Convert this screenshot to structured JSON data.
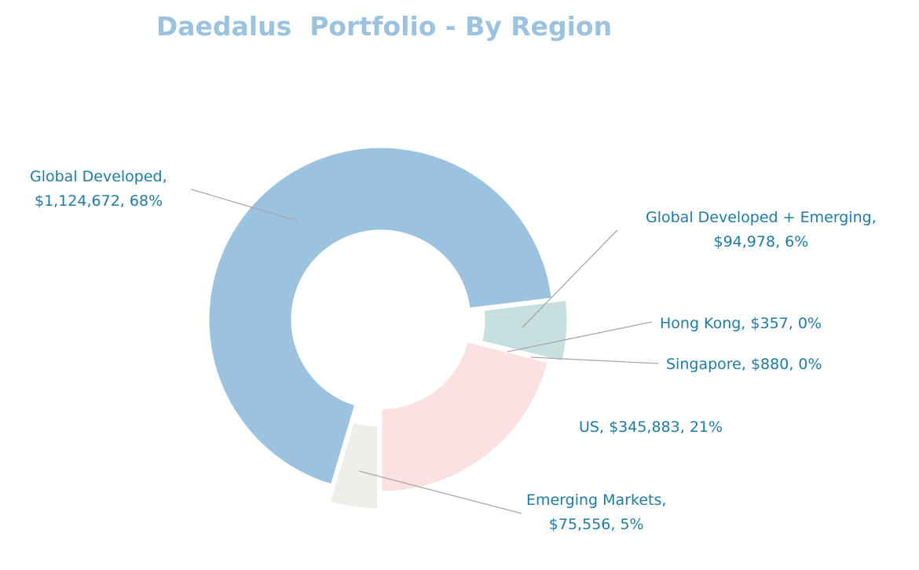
{
  "chart_data": {
    "type": "pie",
    "donut": true,
    "title": "Daedalus  Portfolio - By Region",
    "slices": [
      {
        "name": "Emerging Markets",
        "value": 75556,
        "value_label": "$75,556",
        "percent_label": "5%",
        "color": "#efeeea"
      },
      {
        "name": "Global Developed",
        "value": 1124672,
        "value_label": "$1,124,672",
        "percent_label": "68%",
        "color": "#9bc2df"
      },
      {
        "name": "Global Developed + Emerging",
        "value": 94978,
        "value_label": "$94,978",
        "percent_label": "6%",
        "color": "#c6e0e0"
      },
      {
        "name": "Hong Kong",
        "value": 357,
        "value_label": "$357",
        "percent_label": "0%",
        "color": "#c6e0e0"
      },
      {
        "name": "Singapore",
        "value": 880,
        "value_label": "$880",
        "percent_label": "0%",
        "color": "#c6e0e0"
      },
      {
        "name": "US",
        "value": 345883,
        "value_label": "$345,883",
        "percent_label": "21%",
        "color": "#fce1e2"
      }
    ],
    "label_color": "#1f7ba6",
    "legend": "none"
  }
}
